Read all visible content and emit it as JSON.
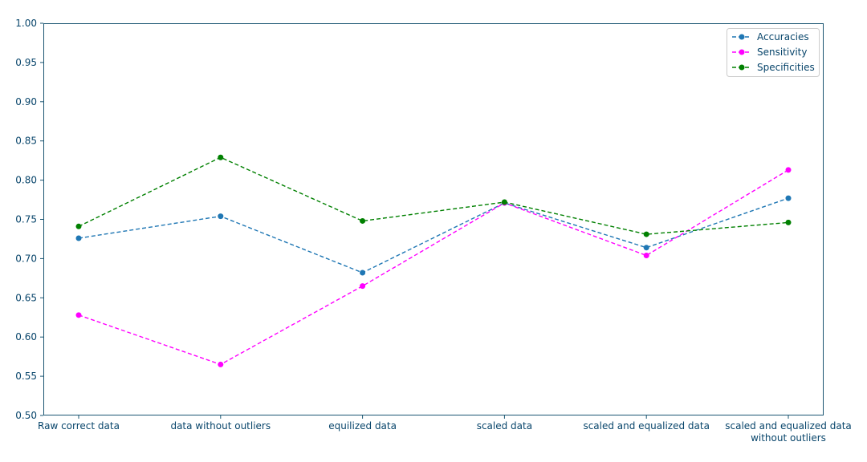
{
  "chart_data": {
    "type": "line",
    "title": "",
    "xlabel": "",
    "ylabel": "",
    "ylim": [
      0.5,
      1.0
    ],
    "yticks": [
      "0.50",
      "0.55",
      "0.60",
      "0.65",
      "0.70",
      "0.75",
      "0.80",
      "0.85",
      "0.90",
      "0.95",
      "1.00"
    ],
    "categories": [
      "Raw correct data",
      "data without outliers",
      "equilized data",
      "scaled data",
      "scaled and equalized data",
      "scaled and equalized data without outliers"
    ],
    "category_lines": [
      [
        "Raw correct data"
      ],
      [
        "data without outliers"
      ],
      [
        "equilized data"
      ],
      [
        "scaled data"
      ],
      [
        "scaled and equalized data"
      ],
      [
        "scaled and equalized data",
        "without outliers"
      ]
    ],
    "series": [
      {
        "name": "Accuracies",
        "color": "#1f77b4",
        "values": [
          0.726,
          0.754,
          0.682,
          0.771,
          0.714,
          0.777
        ]
      },
      {
        "name": "Sensitivity",
        "color": "#ff00ff",
        "values": [
          0.628,
          0.565,
          0.665,
          0.771,
          0.704,
          0.813
        ]
      },
      {
        "name": "Specificities",
        "color": "#008000",
        "values": [
          0.741,
          0.829,
          0.748,
          0.772,
          0.731,
          0.746
        ]
      }
    ],
    "line_style": "dashed",
    "marker": "circle",
    "grid": false,
    "legend_position": "top-right",
    "text_color": "#08456b",
    "axis_color": "#1a5572"
  }
}
